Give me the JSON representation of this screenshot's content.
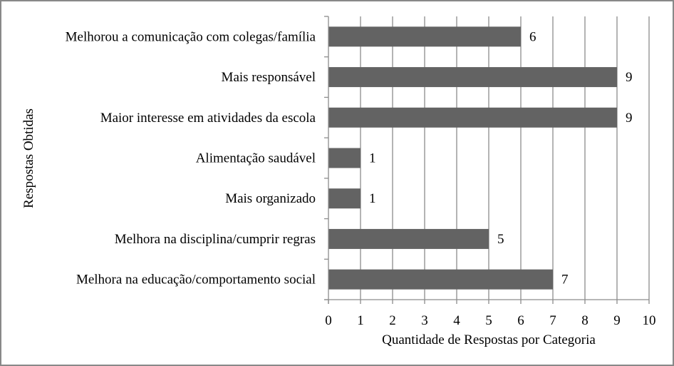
{
  "chart_data": {
    "type": "bar",
    "orientation": "horizontal",
    "title": "",
    "xlabel": "Quantidade de Respostas por Categoria",
    "ylabel": "Respostas Obtidas",
    "xlim": [
      0,
      10
    ],
    "x_ticks": [
      "0",
      "1",
      "2",
      "3",
      "4",
      "5",
      "6",
      "7",
      "8",
      "9",
      "10"
    ],
    "grid": "vertical",
    "legend": "none",
    "bar_color": "#636363",
    "grid_color": "#8c8c8c",
    "data_labels": true,
    "categories": [
      "Melhorou a comunicação com colegas/família",
      "Mais responsável",
      "Maior interesse em atividades da escola",
      "Alimentação saudável",
      "Mais organizado",
      "Melhora na disciplina/cumprir regras",
      "Melhora na educação/comportamento social"
    ],
    "values": [
      6,
      9,
      9,
      1,
      1,
      5,
      7
    ]
  }
}
